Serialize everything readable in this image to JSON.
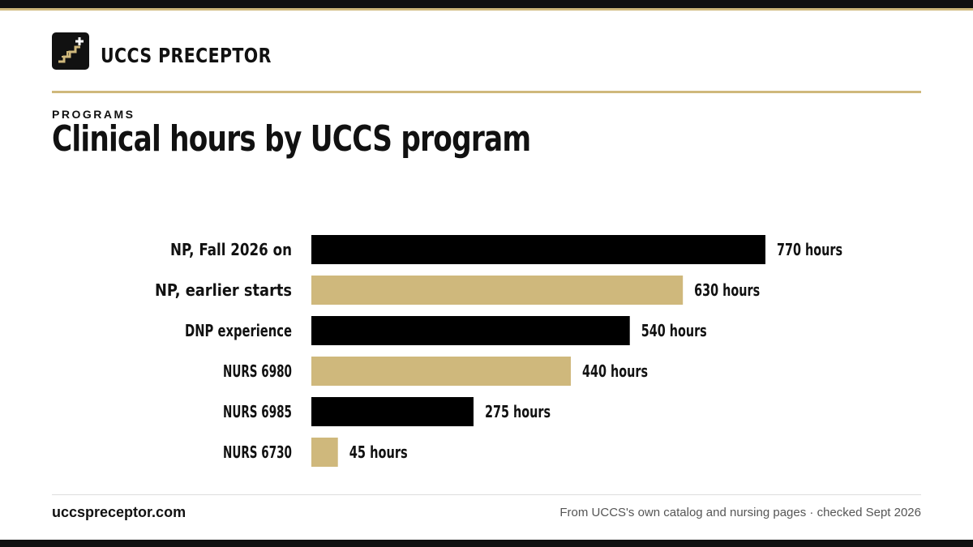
{
  "brand": {
    "name": "UCCS PRECEPTOR",
    "logo_icon": "stairs-plus-icon"
  },
  "header": {
    "eyebrow": "PROGRAMS",
    "title": "Clinical hours by UCCS program"
  },
  "chart_data": {
    "type": "bar",
    "orientation": "horizontal",
    "title": "Clinical hours by UCCS program",
    "xlabel": "",
    "ylabel": "",
    "grid": false,
    "xlim": [
      0,
      770
    ],
    "categories": [
      "NP, Fall 2026 on",
      "NP, earlier starts",
      "DNP experience",
      "NURS 6980",
      "NURS 6985",
      "NURS 6730"
    ],
    "values": [
      770,
      630,
      540,
      440,
      275,
      45
    ],
    "value_labels": [
      "770 hours",
      "630 hours",
      "540 hours",
      "440 hours",
      "275 hours",
      "45 hours"
    ],
    "bar_colors": [
      "#000000",
      "#cfb87c",
      "#000000",
      "#cfb87c",
      "#000000",
      "#cfb87c"
    ]
  },
  "footer": {
    "site": "uccspreceptor.com",
    "source": "From UCCS's own catalog and nursing pages · checked Sept 2026"
  },
  "colors": {
    "dark": "#111111",
    "gold": "#cfb87c",
    "muted": "#555555"
  }
}
